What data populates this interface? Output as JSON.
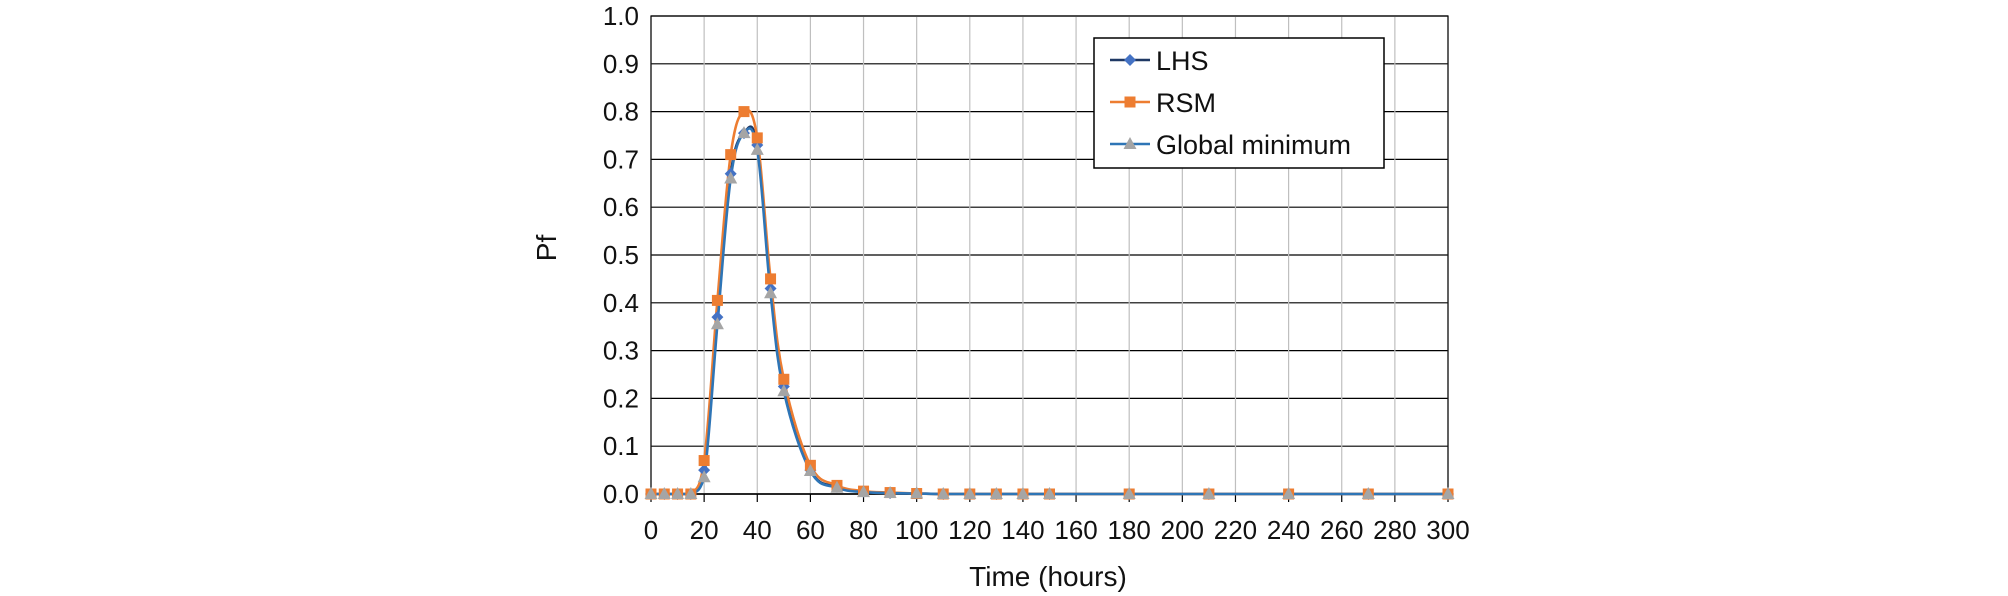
{
  "chart_data": {
    "type": "line",
    "title": "",
    "xlabel": "Time (hours)",
    "ylabel": "Pf",
    "xlim": [
      0,
      300
    ],
    "ylim": [
      0,
      1.0
    ],
    "x_ticks": [
      0,
      20,
      40,
      60,
      80,
      100,
      120,
      140,
      160,
      180,
      200,
      220,
      240,
      260,
      280,
      300
    ],
    "y_ticks": [
      "0.0",
      "0.1",
      "0.2",
      "0.3",
      "0.4",
      "0.5",
      "0.6",
      "0.7",
      "0.8",
      "0.9",
      "1.0"
    ],
    "grid": true,
    "legend_position": "top-right",
    "x": [
      0,
      5,
      10,
      15,
      20,
      25,
      30,
      35,
      40,
      45,
      50,
      60,
      70,
      80,
      90,
      100,
      110,
      120,
      130,
      140,
      150,
      180,
      210,
      240,
      270,
      300
    ],
    "series": [
      {
        "name": "LHS",
        "color": "#1f3864",
        "marker_color": "#4472c4",
        "marker": "diamond",
        "values": [
          0,
          0,
          0,
          0,
          0.05,
          0.37,
          0.67,
          0.755,
          0.73,
          0.43,
          0.225,
          0.05,
          0.015,
          0.005,
          0.002,
          0.001,
          0,
          0,
          0,
          0,
          0,
          0,
          0,
          0,
          0,
          0
        ]
      },
      {
        "name": "RSM",
        "color": "#ed7d31",
        "marker_color": "#ed7d31",
        "marker": "square",
        "values": [
          0,
          0,
          0,
          0,
          0.07,
          0.405,
          0.71,
          0.8,
          0.745,
          0.45,
          0.24,
          0.06,
          0.018,
          0.006,
          0.003,
          0.001,
          0,
          0,
          0,
          0,
          0,
          0,
          0,
          0,
          0,
          0
        ]
      },
      {
        "name": "Global minimum",
        "color": "#2e75b6",
        "marker_color": "#a5a5a5",
        "marker": "triangle",
        "values": [
          0,
          0,
          0,
          0,
          0.035,
          0.355,
          0.66,
          0.755,
          0.72,
          0.42,
          0.215,
          0.048,
          0.013,
          0.004,
          0.002,
          0.001,
          0,
          0,
          0,
          0,
          0,
          0,
          0,
          0,
          0,
          0
        ]
      }
    ]
  }
}
